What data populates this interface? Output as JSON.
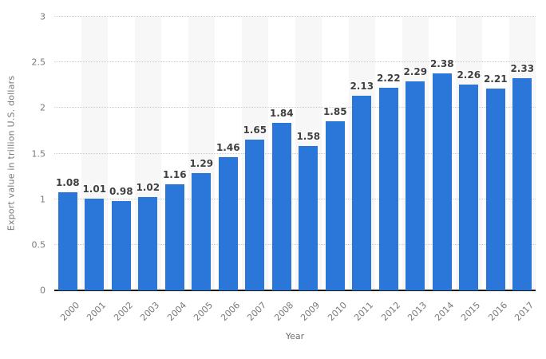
{
  "chart_data": {
    "type": "bar",
    "title": "",
    "categories": [
      "2000",
      "2001",
      "2002",
      "2003",
      "2004",
      "2005",
      "2006",
      "2007",
      "2008",
      "2009",
      "2010",
      "2011",
      "2012",
      "2013",
      "2014",
      "2015",
      "2016",
      "2017"
    ],
    "values": [
      1.08,
      1.01,
      0.98,
      1.02,
      1.16,
      1.29,
      1.46,
      1.65,
      1.84,
      1.58,
      1.85,
      2.13,
      2.22,
      2.29,
      2.38,
      2.26,
      2.21,
      2.33
    ],
    "value_labels": [
      "1.08",
      "1.01",
      "0.98",
      "1.02",
      "1.16",
      "1.29",
      "1.46",
      "1.65",
      "1.84",
      "1.58",
      "1.85",
      "2.13",
      "2.22",
      "2.29",
      "2.38",
      "2.26",
      "2.21",
      "2.33"
    ],
    "xlabel": "Year",
    "ylabel": "Export value in trillion U.S. dollars",
    "ylim": [
      0,
      3
    ],
    "yticks": [
      0,
      0.5,
      1,
      1.5,
      2,
      2.5,
      3
    ],
    "ytick_labels": [
      "0",
      "0.5",
      "1",
      "1.5",
      "2",
      "2.5",
      "3"
    ],
    "grid": "horizontal-dotted",
    "legend": "none",
    "colors": {
      "bar": "#2b76d9",
      "value_label": "#404040",
      "tick_label": "#7a7a7a",
      "axis_title": "#6e6e6e",
      "gridline": "#cccccc",
      "stripe": "#f7f7f7",
      "baseline": "#1a1a1a",
      "background": "#ffffff"
    }
  }
}
